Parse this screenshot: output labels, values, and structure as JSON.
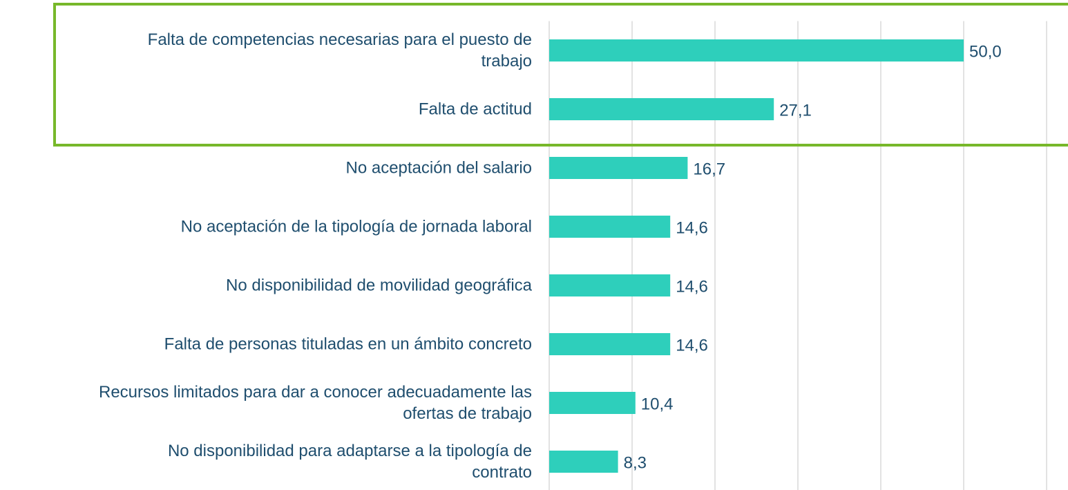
{
  "chart_data": {
    "type": "barh",
    "categories": [
      "Falta de competencias necesarias para el puesto de\ntrabajo",
      "Falta de actitud",
      "No aceptación del salario",
      "No aceptación de la tipología de jornada laboral",
      "No disponibilidad de movilidad geográfica",
      "Falta de personas tituladas en un ámbito concreto",
      "Recursos limitados para dar a conocer adecuadamente las\nofertas de trabajo",
      "No disponibilidad para adaptarse a la tipología de\ncontrato"
    ],
    "values": [
      50.0,
      27.1,
      16.7,
      14.6,
      14.6,
      14.6,
      10.4,
      8.3
    ],
    "value_labels": [
      "50,0",
      "27,1",
      "16,7",
      "14,6",
      "14,6",
      "14,6",
      "10,4",
      "8,3"
    ],
    "color": "#2ecfbb",
    "xlim": [
      0,
      60
    ],
    "xticks": [
      0,
      10,
      20,
      30,
      40,
      50,
      60
    ],
    "grid": true
  }
}
